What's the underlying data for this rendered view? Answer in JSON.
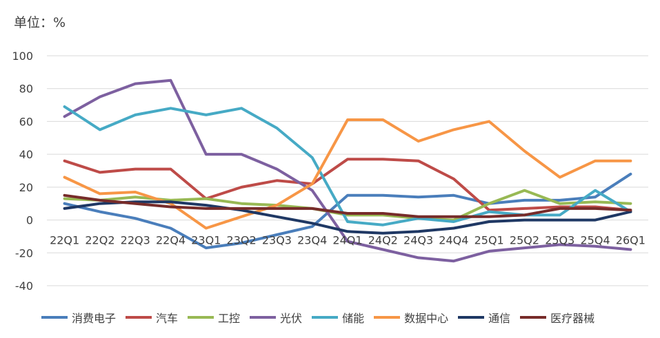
{
  "unit_label": "单位：%",
  "chart_data": {
    "type": "line",
    "ylim": [
      -40,
      100
    ],
    "yticks": [
      -40,
      -20,
      0,
      20,
      40,
      60,
      80,
      100
    ],
    "grid": true,
    "legend_position": "bottom",
    "categories": [
      "22Q1",
      "22Q2",
      "22Q3",
      "22Q4",
      "23Q1",
      "23Q2",
      "23Q3",
      "23Q4",
      "24Q1",
      "24Q2",
      "24Q3",
      "24Q4",
      "25Q1",
      "25Q2",
      "25Q3",
      "25Q4",
      "26Q1"
    ],
    "series": [
      {
        "name": "消费电子",
        "color": "#4a7ebb",
        "values": [
          10,
          5,
          1,
          -5,
          -17,
          -14,
          -9,
          -4,
          15,
          15,
          14,
          15,
          10,
          12,
          12,
          14,
          28
        ]
      },
      {
        "name": "汽车",
        "color": "#be4b48",
        "values": [
          36,
          29,
          31,
          31,
          13,
          20,
          24,
          22,
          37,
          37,
          36,
          25,
          6,
          7,
          8,
          8,
          6
        ]
      },
      {
        "name": "工控",
        "color": "#98b954",
        "values": [
          13,
          12,
          14,
          12,
          13,
          10,
          9,
          7,
          3,
          3,
          1,
          0,
          10,
          18,
          10,
          11,
          10
        ]
      },
      {
        "name": "光伏",
        "color": "#7d60a0",
        "values": [
          63,
          75,
          83,
          85,
          40,
          40,
          31,
          18,
          -13,
          -18,
          -23,
          -25,
          -19,
          -17,
          -15,
          -16,
          -18
        ]
      },
      {
        "name": "储能",
        "color": "#46aac5",
        "values": [
          69,
          55,
          64,
          68,
          64,
          68,
          56,
          38,
          -1,
          -3,
          1,
          -1,
          5,
          3,
          3,
          18,
          5
        ]
      },
      {
        "name": "数据中心",
        "color": "#f79646",
        "values": [
          26,
          16,
          17,
          10,
          -5,
          2,
          9,
          22,
          61,
          61,
          48,
          55,
          60,
          42,
          26,
          36,
          36
        ]
      },
      {
        "name": "通信",
        "color": "#1f3864",
        "values": [
          7,
          10,
          11,
          11,
          9,
          6,
          2,
          -2,
          -7,
          -8,
          -7,
          -5,
          -1,
          0,
          0,
          0,
          5
        ]
      },
      {
        "name": "医疗器械",
        "color": "#772c2a",
        "values": [
          15,
          12,
          10,
          8,
          7,
          7,
          7,
          7,
          4,
          4,
          2,
          2,
          2,
          3,
          7,
          7,
          6
        ]
      }
    ]
  }
}
